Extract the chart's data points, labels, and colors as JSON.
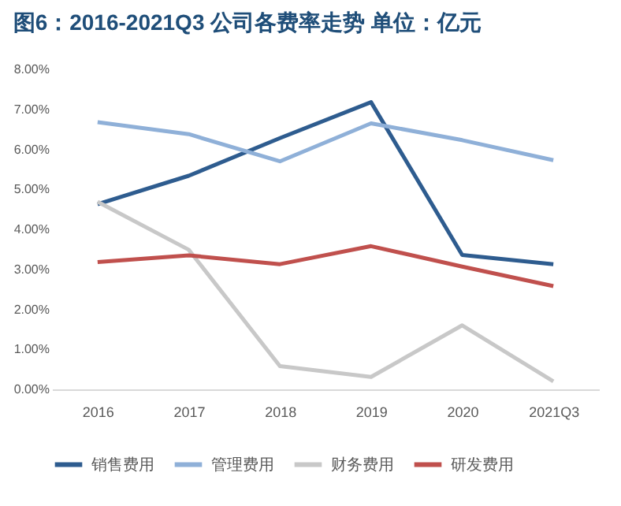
{
  "chart_data": {
    "type": "line",
    "title": "图6：2016-2021Q3 公司各费率走势 单位：亿元",
    "categories": [
      "2016",
      "2017",
      "2018",
      "2019",
      "2020",
      "2021Q3"
    ],
    "series": [
      {
        "name": "销售费用",
        "color": "#2e5c8f",
        "values": [
          4.63,
          5.34,
          6.28,
          7.18,
          3.36,
          3.13
        ]
      },
      {
        "name": "管理费用",
        "color": "#8fb0d8",
        "values": [
          6.68,
          6.38,
          5.7,
          6.65,
          6.23,
          5.73
        ]
      },
      {
        "name": "财务费用",
        "color": "#c8c8c8",
        "values": [
          4.69,
          3.49,
          0.58,
          0.31,
          1.6,
          0.2
        ]
      },
      {
        "name": "研发费用",
        "color": "#c0504d",
        "values": [
          3.18,
          3.35,
          3.13,
          3.58,
          3.07,
          2.58
        ]
      }
    ],
    "ylim": [
      0,
      8
    ],
    "yticks": [
      {
        "value": 0,
        "label": "0.00%"
      },
      {
        "value": 1,
        "label": "1.00%"
      },
      {
        "value": 2,
        "label": "2.00%"
      },
      {
        "value": 3,
        "label": "3.00%"
      },
      {
        "value": 4,
        "label": "4.00%"
      },
      {
        "value": 5,
        "label": "5.00%"
      },
      {
        "value": 6,
        "label": "6.00%"
      },
      {
        "value": 7,
        "label": "7.00%"
      },
      {
        "value": 8,
        "label": "8.00%"
      }
    ],
    "grid": false,
    "legend": "bottom",
    "marker": "none",
    "line_style": "solid"
  }
}
